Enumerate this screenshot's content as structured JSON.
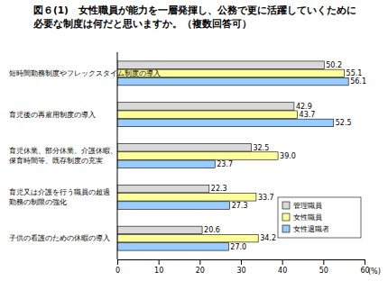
{
  "chart_data": {
    "type": "bar",
    "orientation": "horizontal",
    "title": [
      "図６(1)　女性職員が能力を一層発揮し、公務で更に活躍していくために",
      "必要な制度は何だと思いますか。（複数回答可）"
    ],
    "categories": [
      [
        "短時間勤務制度やフレックスタイム制度の導入"
      ],
      [
        "育児後の再雇用制度の導入"
      ],
      [
        "育児休業、部分休業、介護休暇、",
        "保育時間等、既存制度の充実"
      ],
      [
        "育児又は介護を行う職員の超過",
        "勤務の制限の強化"
      ],
      [
        "子供の看護のための休暇の導入"
      ]
    ],
    "series": [
      {
        "name": "管理職員",
        "color": "#d9d9d9",
        "values": [
          50.2,
          42.9,
          32.5,
          22.3,
          20.6
        ],
        "value_labels": [
          "50.2",
          "42.9",
          "32.5",
          "22.3",
          "20.6"
        ]
      },
      {
        "name": "女性職員",
        "color": "#ffff99",
        "values": [
          55.1,
          43.7,
          39.0,
          33.7,
          34.2
        ],
        "value_labels": [
          "55.1",
          "43.7",
          "39.0",
          "33.7",
          "34.2"
        ]
      },
      {
        "name": "女性退職者",
        "color": "#99ccff",
        "values": [
          56.1,
          52.5,
          23.7,
          27.3,
          27.0
        ],
        "value_labels": [
          "56.1",
          "52.5",
          "23.7",
          "27.3",
          "27.0"
        ]
      }
    ],
    "xlim": [
      0,
      60
    ],
    "xticks": [
      0,
      10,
      20,
      30,
      40,
      50,
      60
    ],
    "xlabel": "(%)",
    "data_labels": true,
    "legend": "lower right",
    "grid": false
  }
}
